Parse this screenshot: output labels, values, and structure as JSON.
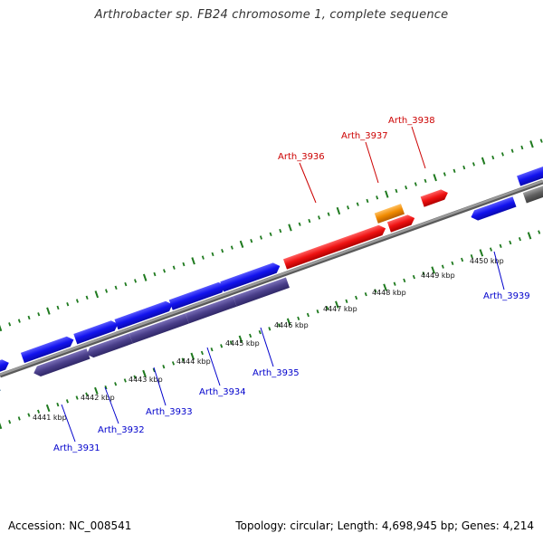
{
  "title": "Arthrobacter sp. FB24 chromosome 1, complete sequence",
  "footer": {
    "accession": "Accession: NC_008541",
    "summary": "Topology: circular; Length: 4,698,945 bp; Genes: 4,214"
  },
  "colors": {
    "backbone": "#8a8a8a",
    "tick": "#1f7a1f",
    "forward_gene": "#1010e8",
    "reverse_gene": "#4a3f8a",
    "highlight_gene": "#ee1111",
    "orange_gene": "#f08a00",
    "gray_gene": "#606060",
    "light_blue_gene": "#3f86c0",
    "label_blue": "#0000cc",
    "label_red": "#cc0000"
  },
  "kbp_labels": [
    "4441 kbp",
    "4442 kbp",
    "4443 kbp",
    "4444 kbp",
    "4445 kbp",
    "4446 kbp",
    "4447 kbp",
    "4448 kbp",
    "4449 kbp",
    "4450 kbp"
  ],
  "gene_labels": {
    "top": [
      "Arth_3936",
      "Arth_3937",
      "Arth_3938"
    ],
    "bottom": [
      "Arth_3931",
      "Arth_3932",
      "Arth_3933",
      "Arth_3934",
      "Arth_3935",
      "Arth_3939"
    ]
  }
}
